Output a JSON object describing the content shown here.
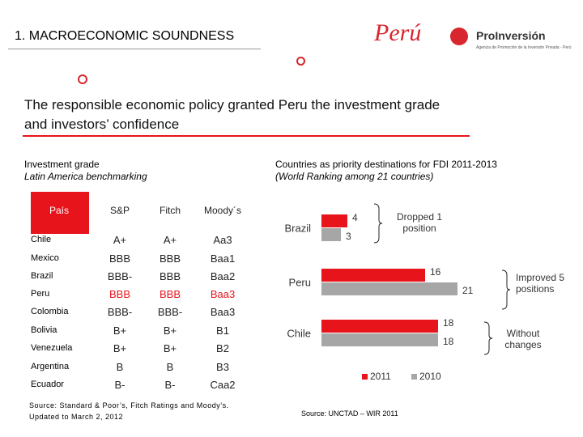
{
  "header": {
    "title": "1. MACROECONOMIC SOUNDNESS",
    "logo_peru": "Perú",
    "logo_proinversion": "ProInversión",
    "logo_tagline": "Agencia de Promoción de la Inversión Privada - Perú"
  },
  "heading": "The responsible economic policy granted Peru the investment grade and investors’ confidence",
  "left": {
    "title": "Investment grade",
    "subtitle": "Latin America benchmarking",
    "table": {
      "columns": [
        "País",
        "S&P",
        "Fitch",
        "Moody´s"
      ],
      "rows": [
        [
          "Chile",
          "A+",
          "A+",
          "Aa3"
        ],
        [
          "Mexico",
          "BBB",
          "BBB",
          "Baa1"
        ],
        [
          "Brazil",
          "BBB-",
          "BBB",
          "Baa2"
        ],
        [
          "Peru",
          "BBB",
          "BBB",
          "Baa3"
        ],
        [
          "Colombia",
          "BBB-",
          "BBB-",
          "Baa3"
        ],
        [
          "Bolivia",
          "B+",
          "B+",
          "B1"
        ],
        [
          "Venezuela",
          "B+",
          "B+",
          "B2"
        ],
        [
          "Argentina",
          "B",
          "B",
          "B3"
        ],
        [
          "Ecuador",
          "B-",
          "B-",
          "Caa2"
        ]
      ]
    },
    "source": "Source: Standard & Poor’s, Fitch Ratings and Moody’s. Updated to March 2, 2012"
  },
  "chart_data": {
    "type": "hbar",
    "title": "Countries as priority destinations for FDI 2011-2013",
    "subtitle": "(World Ranking among 21 countries)",
    "categories": [
      "Brazil",
      "Peru",
      "Chile"
    ],
    "series": [
      {
        "name": "2011",
        "color": "#e8141b",
        "values": [
          4,
          16,
          18
        ]
      },
      {
        "name": "2010",
        "color": "#a6a6a6",
        "values": [
          3,
          21,
          18
        ]
      }
    ],
    "annotations": [
      "Dropped 1 position",
      "Improved 5 positions",
      "Without changes"
    ],
    "source": "Source: UNCTAD – WIR 2011"
  }
}
